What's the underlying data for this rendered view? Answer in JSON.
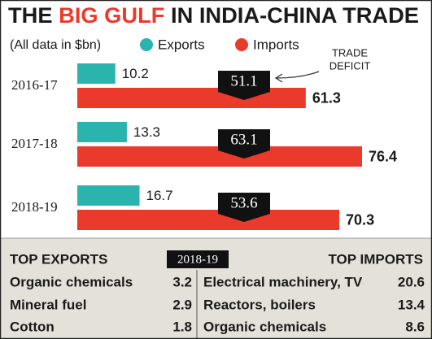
{
  "chart_data": {
    "type": "bar",
    "orientation": "horizontal",
    "title": [
      "THE",
      "BIG GULF",
      "IN INDIA-CHINA TRADE"
    ],
    "subtitle": "(All data in $bn)",
    "categories": [
      "2016-17",
      "2017-18",
      "2018-19"
    ],
    "series": [
      {
        "name": "Exports",
        "color": "#2bb3ad",
        "values": [
          10.2,
          13.3,
          16.7
        ]
      },
      {
        "name": "Imports",
        "color": "#ea3a2c",
        "values": [
          61.3,
          76.4,
          70.3
        ]
      }
    ],
    "deficit": {
      "label": [
        "TRADE",
        "DEFICIT"
      ],
      "color": "#111111",
      "values": [
        51.1,
        63.1,
        53.6
      ]
    }
  },
  "tables": {
    "year": "2018-19",
    "top_exports": {
      "title": "TOP EXPORTS",
      "rows": [
        [
          "Organic chemicals",
          3.2
        ],
        [
          "Mineral fuel",
          2.9
        ],
        [
          "Cotton",
          1.8
        ]
      ]
    },
    "top_imports": {
      "title": "TOP IMPORTS",
      "rows": [
        [
          "Electrical machinery, TV",
          20.6
        ],
        [
          "Reactors, boilers",
          13.4
        ],
        [
          "Organic chemicals",
          8.6
        ]
      ]
    }
  }
}
